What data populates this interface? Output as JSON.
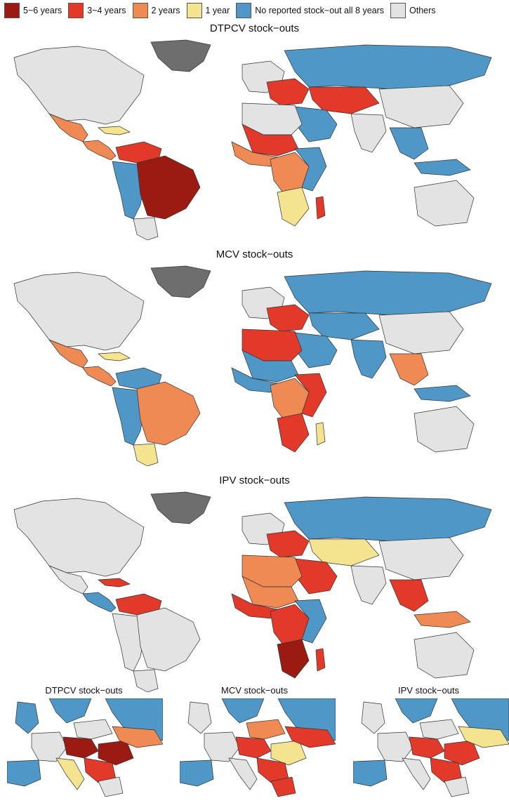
{
  "legend": [
    {
      "label": "5~6 years",
      "color": "#9b1a12"
    },
    {
      "label": "3~4 years",
      "color": "#e2392a"
    },
    {
      "label": "2 years",
      "color": "#ef8a55"
    },
    {
      "label": "1 year",
      "color": "#f5e48f"
    },
    {
      "label": "No reported stock−out all 8 years",
      "color": "#4e97c6"
    },
    {
      "label": "Others",
      "color": "#e3e3e3"
    }
  ],
  "maps": [
    {
      "title": "DTPCV stock−outs",
      "regions": {
        "north_america": "Others",
        "greenland": "Others-dark",
        "mexico": "2 years",
        "central_america": "2 years",
        "caribbean": "1 year",
        "brazil": "5~6 years",
        "andes_west": "No reported stock−out all 8 years",
        "venezuela": "3~4 years",
        "southern_cone": "Others",
        "europe_west": "Others",
        "europe_east": "3~4 years",
        "russia": "No reported stock−out all 8 years",
        "central_asia": "3~4 years",
        "middle_east": "No reported stock−out all 8 years",
        "north_africa": "Others",
        "sahel": "3~4 years",
        "west_africa": "2 years",
        "central_africa": "2 years",
        "east_africa": "No reported stock−out all 8 years",
        "southern_africa": "1 year",
        "madagascar": "3~4 years",
        "china": "Others",
        "india": "Others",
        "southeast_asia": "No reported stock−out all 8 years",
        "indonesia": "No reported stock−out all 8 years",
        "australia": "Others"
      }
    },
    {
      "title": "MCV stock−outs",
      "regions": {
        "north_america": "Others",
        "greenland": "Others-dark",
        "mexico": "2 years",
        "central_america": "2 years",
        "caribbean": "1 year",
        "brazil": "2 years",
        "andes_west": "No reported stock−out all 8 years",
        "venezuela": "No reported stock−out all 8 years",
        "southern_cone": "1 year",
        "europe_west": "Others",
        "europe_east": "3~4 years",
        "russia": "No reported stock−out all 8 years",
        "central_asia": "No reported stock−out all 8 years",
        "middle_east": "No reported stock−out all 8 years",
        "north_africa": "3~4 years",
        "sahel": "No reported stock−out all 8 years",
        "west_africa": "No reported stock−out all 8 years",
        "central_africa": "2 years",
        "east_africa": "3~4 years",
        "southern_africa": "3~4 years",
        "madagascar": "1 year",
        "china": "Others",
        "india": "No reported stock−out all 8 years",
        "southeast_asia": "2 years",
        "indonesia": "No reported stock−out all 8 years",
        "australia": "Others"
      }
    },
    {
      "title": "IPV stock−outs",
      "regions": {
        "north_america": "Others",
        "greenland": "Others-dark",
        "mexico": "Others",
        "central_america": "No reported stock−out all 8 years",
        "caribbean": "3~4 years",
        "brazil": "Others",
        "andes_west": "Others",
        "venezuela": "3~4 years",
        "southern_cone": "Others",
        "europe_west": "Others",
        "europe_east": "3~4 years",
        "russia": "No reported stock−out all 8 years",
        "central_asia": "1 year",
        "middle_east": "3~4 years",
        "north_africa": "2 years",
        "sahel": "2 years",
        "west_africa": "3~4 years",
        "central_africa": "3~4 years",
        "east_africa": "No reported stock−out all 8 years",
        "southern_africa": "5~6 years",
        "madagascar": "3~4 years",
        "china": "Others",
        "india": "Others",
        "southeast_asia": "3~4 years",
        "indonesia": "2 years",
        "australia": "Others"
      }
    }
  ],
  "insets": [
    {
      "title": "DTPCV stock−outs",
      "regions": {
        "iberia": "No reported stock−out all 8 years",
        "france": "Others",
        "uk": "No reported stock−out all 8 years",
        "italy": "1 year",
        "central": "5~6 years",
        "romania": "5~6 years",
        "ukraine": "2 years",
        "balkans": "3~4 years",
        "scandinavia": "No reported stock−out all 8 years",
        "russia": "No reported stock−out all 8 years",
        "greece": "Others",
        "poland": "Others"
      }
    },
    {
      "title": "MCV stock−outs",
      "regions": {
        "iberia": "No reported stock−out all 8 years",
        "france": "Others",
        "uk": "Others",
        "italy": "Others",
        "central": "3~4 years",
        "romania": "1 year",
        "ukraine": "3~4 years",
        "balkans": "3~4 years",
        "scandinavia": "No reported stock−out all 8 years",
        "russia": "No reported stock−out all 8 years",
        "greece": "3~4 years",
        "poland": "2 years"
      }
    },
    {
      "title": "IPV stock−outs",
      "regions": {
        "iberia": "No reported stock−out all 8 years",
        "france": "Others",
        "uk": "Others",
        "italy": "Others",
        "central": "3~4 years",
        "romania": "3~4 years",
        "ukraine": "1 year",
        "balkans": "3~4 years",
        "scandinavia": "No reported stock−out all 8 years",
        "russia": "No reported stock−out all 8 years",
        "greece": "Others",
        "poland": "Others"
      }
    }
  ]
}
